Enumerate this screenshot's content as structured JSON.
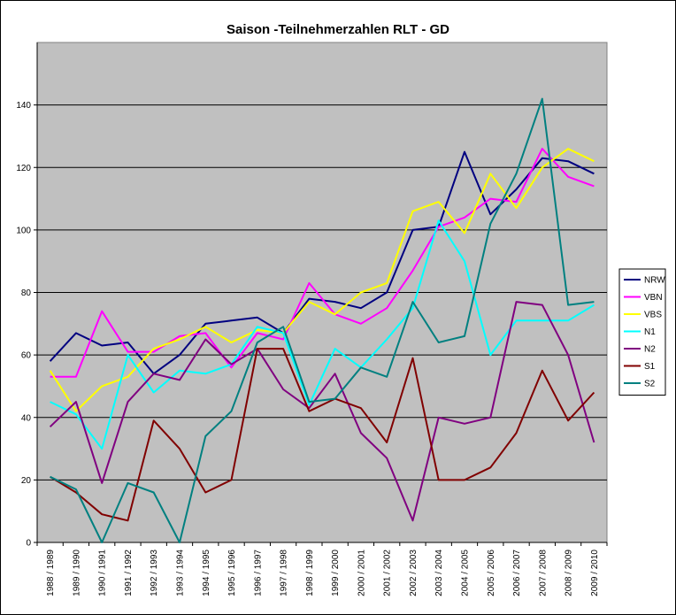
{
  "chart_data": {
    "type": "line",
    "title": "Saison -Teilnehmerzahlen RLT - GD",
    "xlabel": "",
    "ylabel": "",
    "ylim": [
      0,
      160
    ],
    "yticks": [
      0,
      20,
      40,
      60,
      80,
      100,
      120,
      140
    ],
    "grid": true,
    "legend": "right",
    "plot_background": "#c0c0c0",
    "categories": [
      "1988 / 1989",
      "1989 / 1990",
      "1990 / 1991",
      "1991 / 1992",
      "1992 / 1993",
      "1993 / 1994",
      "1994 / 1995",
      "1995 / 1996",
      "1996 / 1997",
      "1997 / 1998",
      "1998 / 1999",
      "1999 / 2000",
      "2000 / 2001",
      "2001 / 2002",
      "2002 / 2003",
      "2003 / 2004",
      "2004 / 2005",
      "2005 / 2006",
      "2006 / 2007",
      "2007 / 2008",
      "2008 / 2009",
      "2009 / 2010"
    ],
    "series": [
      {
        "name": "NRW",
        "color": "#000080",
        "values": [
          58,
          67,
          63,
          64,
          54,
          60,
          70,
          71,
          72,
          67,
          78,
          77,
          75,
          80,
          100,
          101,
          125,
          105,
          113,
          123,
          122,
          118
        ]
      },
      {
        "name": "VBN",
        "color": "#ff00ff",
        "values": [
          53,
          53,
          74,
          61,
          61,
          66,
          67,
          56,
          67,
          65,
          83,
          73,
          70,
          75,
          87,
          101,
          104,
          110,
          109,
          126,
          117,
          114
        ]
      },
      {
        "name": "VBS",
        "color": "#ffff00",
        "values": [
          55,
          42,
          50,
          53,
          62,
          65,
          69,
          64,
          68,
          67,
          77,
          73,
          80,
          83,
          106,
          109,
          99,
          118,
          107,
          120,
          126,
          122
        ]
      },
      {
        "name": "N1",
        "color": "#00ffff",
        "values": [
          45,
          41,
          30,
          60,
          48,
          55,
          54,
          57,
          69,
          67,
          44,
          62,
          56,
          65,
          75,
          103,
          90,
          60,
          71,
          71,
          71,
          76
        ]
      },
      {
        "name": "N2",
        "color": "#800080",
        "values": [
          37,
          45,
          19,
          45,
          54,
          52,
          65,
          57,
          62,
          49,
          43,
          54,
          35,
          27,
          7,
          40,
          38,
          40,
          77,
          76,
          60,
          32
        ]
      },
      {
        "name": "S1",
        "color": "#800000",
        "values": [
          21,
          16,
          9,
          7,
          39,
          30,
          16,
          20,
          62,
          62,
          42,
          46,
          43,
          32,
          59,
          20,
          20,
          24,
          35,
          55,
          39,
          48
        ]
      },
      {
        "name": "S2",
        "color": "#008080",
        "values": [
          21,
          17,
          0,
          19,
          16,
          0,
          34,
          42,
          64,
          69,
          45,
          46,
          56,
          53,
          77,
          64,
          66,
          102,
          118,
          142,
          76,
          77
        ]
      }
    ]
  }
}
